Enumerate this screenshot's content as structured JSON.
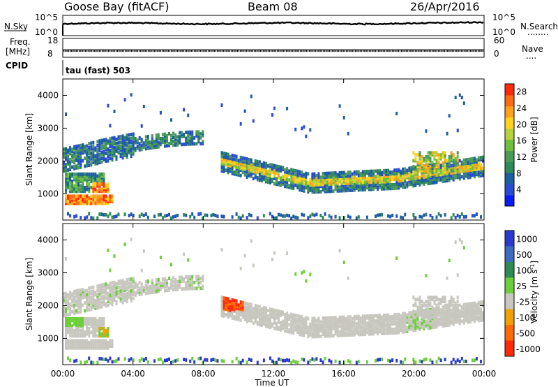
{
  "header": {
    "station": "Goose Bay (fitACF)",
    "beam": "Beam 08",
    "date": "26/Apr/2016"
  },
  "noise_panel": {
    "left_label": "N.Sky",
    "right_label": "N.Search",
    "right_dots": "........",
    "left_ticks": [
      "10^5",
      "10^0"
    ],
    "right_ticks": [
      "10^5",
      "10^0"
    ]
  },
  "freq_panel": {
    "label_line1": "Freq.",
    "label_line2": "[MHz]",
    "left_ticks": [
      "18",
      "8"
    ],
    "right_ticks": [
      "60",
      "0"
    ],
    "right_label": "Nave",
    "right_dots": "....",
    "cpid_label": "CPID",
    "cpid_text": "tau (fast) 503"
  },
  "chart_data": [
    {
      "type": "heatmap",
      "name": "power",
      "xlabel": "Time UT",
      "ylabel": "Slant Range [km]",
      "x_ticks": [
        "00:00",
        "04:00",
        "08:00",
        "12:00",
        "16:00",
        "20:00",
        "00:00"
      ],
      "x_range_hours": [
        0,
        24
      ],
      "y_ticks": [
        1000,
        2000,
        3000,
        4000
      ],
      "ylim": [
        200,
        4500
      ],
      "colorbar_label": "Power [dB]",
      "colorbar_ticks": [
        4,
        8,
        12,
        16,
        20,
        24,
        28
      ],
      "colorbar_range": [
        0,
        30
      ],
      "colors": [
        "#0a1cff",
        "#2a4bd6",
        "#1b5fa0",
        "#2e8b57",
        "#4c9a5a",
        "#6fbf3f",
        "#b7d23a",
        "#ffd21e",
        "#ffa11a",
        "#ff6a10",
        "#ff2a0a"
      ]
    },
    {
      "type": "heatmap",
      "name": "velocity",
      "xlabel": "Time UT",
      "ylabel": "Slant Range [km]",
      "x_ticks": [
        "00:00",
        "04:00",
        "08:00",
        "12:00",
        "16:00",
        "20:00",
        "00:00"
      ],
      "x_range_hours": [
        0,
        24
      ],
      "y_ticks": [
        1000,
        2000,
        3000,
        4000
      ],
      "ylim": [
        200,
        4500
      ],
      "colorbar_label": "Velocity [m s",
      "colorbar_label_sup": "-1",
      "colorbar_label_end": "]",
      "colorbar_ticks": [
        "1000",
        "500",
        "100",
        "25",
        "-25",
        "-100",
        "-500",
        "-1000"
      ],
      "colors": [
        "#2a3ad0",
        "#3b6cc0",
        "#2e8b57",
        "#6ccf3a",
        "#c8c7bf",
        "#f0a000",
        "#ff6a00",
        "#ff2a0a"
      ]
    }
  ]
}
